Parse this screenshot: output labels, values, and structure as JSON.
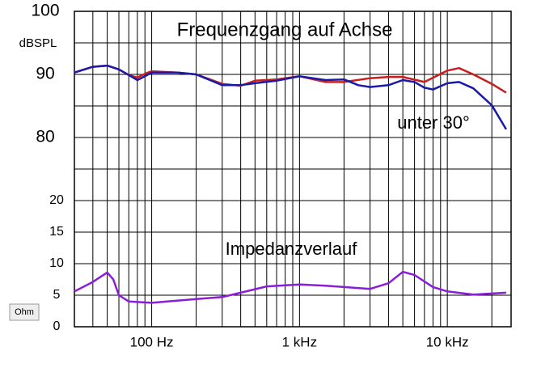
{
  "chart_data": {
    "type": "line",
    "title": "Frequenzgang auf Achse",
    "y_label": "dBSPL",
    "y2_label": "Ohm",
    "annotations": [
      "unter 30°",
      "Impedanzverlauf"
    ],
    "log_x": true,
    "grid": true,
    "xlim": [
      30,
      27000
    ],
    "xticks": [
      {
        "value": 100,
        "label": "100 Hz"
      },
      {
        "value": 1000,
        "label": "1 kHz"
      },
      {
        "value": 10000,
        "label": "10 kHz"
      }
    ],
    "xgrid": [
      40,
      50,
      60,
      70,
      80,
      90,
      200,
      300,
      400,
      500,
      600,
      700,
      800,
      900,
      2000,
      3000,
      4000,
      5000,
      6000,
      7000,
      8000,
      9000,
      20000
    ],
    "ylim": [
      50,
      100
    ],
    "yticks": [
      80,
      90,
      100
    ],
    "ygrid": [
      50,
      55,
      60,
      65,
      70,
      75,
      85,
      95
    ],
    "y2lim": [
      0,
      50
    ],
    "y2ticks": [
      0,
      5,
      10,
      15,
      20
    ],
    "series": [
      {
        "name": "Achse",
        "color": "#c81e1e",
        "x": [
          30,
          40,
          50,
          60,
          70,
          80,
          90,
          100,
          150,
          200,
          300,
          400,
          500,
          700,
          1000,
          1500,
          2000,
          3000,
          4000,
          5000,
          7000,
          10000,
          12000,
          15000,
          20000,
          25000
        ],
        "values": [
          90.3,
          91.2,
          91.4,
          90.8,
          89.9,
          89.5,
          90.1,
          90.5,
          90.3,
          90,
          88.5,
          88.2,
          89,
          89.2,
          89.7,
          88.8,
          88.8,
          89.4,
          89.6,
          89.6,
          88.8,
          90.6,
          91,
          90,
          88.5,
          87.1
        ]
      },
      {
        "name": "unter 30°",
        "color": "#1a1aa8",
        "x": [
          30,
          40,
          50,
          60,
          70,
          80,
          90,
          100,
          150,
          200,
          300,
          400,
          500,
          700,
          1000,
          1500,
          2000,
          2500,
          3000,
          4000,
          5000,
          6000,
          7000,
          8000,
          10000,
          12000,
          15000,
          20000,
          25000
        ],
        "values": [
          90.3,
          91.2,
          91.4,
          90.8,
          89.9,
          89.1,
          89.7,
          90.3,
          90.3,
          90,
          88.3,
          88.3,
          88.6,
          89,
          89.7,
          89.1,
          89.2,
          88.3,
          88,
          88.3,
          89.1,
          88.8,
          87.9,
          87.6,
          88.6,
          88.8,
          87.8,
          85.1,
          81.3
        ]
      },
      {
        "name": "Impedanzverlauf",
        "color": "#8a1ed8",
        "axis": "y2",
        "x": [
          30,
          40,
          50,
          55,
          60,
          70,
          100,
          200,
          300,
          400,
          600,
          1000,
          1500,
          2000,
          3000,
          4000,
          5000,
          6000,
          8000,
          10000,
          15000,
          25000
        ],
        "values": [
          5.6,
          7.1,
          8.6,
          7.5,
          5,
          4,
          3.8,
          4.4,
          4.7,
          5.4,
          6.4,
          6.7,
          6.5,
          6.3,
          6,
          6.9,
          8.7,
          8.2,
          6.3,
          5.6,
          5.1,
          5.4
        ]
      }
    ]
  }
}
